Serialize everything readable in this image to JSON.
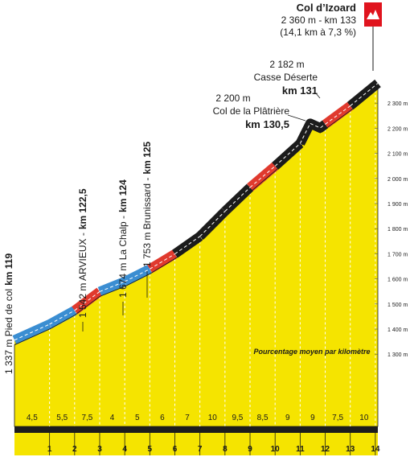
{
  "chart_data": {
    "type": "climb-profile",
    "title": "Col d’Izoard",
    "subtitle": "2 360 m - km 133",
    "summary": "(14,1 km à 7,3 %)",
    "legend_note": "Pourcentage moyen par kilomètre",
    "profile": {
      "x": [
        -0.4,
        1,
        2,
        3,
        4,
        5,
        6,
        7,
        8,
        9,
        10,
        11,
        11.4,
        11.8,
        13,
        14.1
      ],
      "elevation": [
        1337,
        1400,
        1455,
        1530,
        1570,
        1620,
        1680,
        1750,
        1850,
        1945,
        2030,
        2120,
        2200,
        2182,
        2270,
        2360
      ]
    },
    "bounds": [
      -0.4,
      1,
      2,
      3,
      4,
      5,
      6,
      7,
      8,
      9,
      10,
      11,
      12,
      13,
      14.1
    ],
    "values": [
      4.5,
      5.5,
      7.5,
      4,
      5,
      6,
      7,
      10,
      9.5,
      8.5,
      9,
      9,
      7.5,
      10
    ],
    "value_labels": [
      "4,5",
      "5,5",
      "7,5",
      "4",
      "5",
      "6",
      "7",
      "10",
      "9,5",
      "8,5",
      "9",
      "9",
      "7,5",
      "10"
    ],
    "colors": [
      "#3b8ed2",
      "#3b8ed2",
      "#e03a2e",
      "#3b8ed2",
      "#3b8ed2",
      "#e03a2e",
      "#1c1c1c",
      "#1c1c1c",
      "#1c1c1c",
      "#e03a2e",
      "#1c1c1c",
      "#1c1c1c",
      "#e03a2e",
      "#1c1c1c"
    ],
    "xlim": [
      -0.4,
      14.1
    ],
    "xticks": [
      1,
      2,
      3,
      4,
      5,
      6,
      7,
      8,
      9,
      10,
      11,
      12,
      13,
      14
    ],
    "ylim": [
      1150,
      2400
    ],
    "yticks": [
      {
        "value": 1300,
        "label": "1 300 m"
      },
      {
        "value": 1400,
        "label": "1 400 m"
      },
      {
        "value": 1500,
        "label": "1 500 m"
      },
      {
        "value": 1600,
        "label": "1 600 m"
      },
      {
        "value": 1700,
        "label": "1 700 m"
      },
      {
        "value": 1800,
        "label": "1 800 m"
      },
      {
        "value": 1900,
        "label": "1 900 m"
      },
      {
        "value": 2000,
        "label": "2 000 m"
      },
      {
        "value": 2100,
        "label": "2 100 m"
      },
      {
        "value": 2200,
        "label": "2 200 m"
      },
      {
        "value": 2300,
        "label": "2 300 m"
      }
    ],
    "vertical_annotations": [
      {
        "text": "1 337 m Pied de col",
        "bold": "km 119"
      },
      {
        "text": "1 542 m ARVIEUX -",
        "bold": "km 122,5"
      },
      {
        "text": "1 674 m La Chalp -",
        "bold": "km 124"
      },
      {
        "text": "1 753 m Brunissard -",
        "bold": "km 125"
      }
    ],
    "point_annotations": [
      {
        "elevation": "2 200 m",
        "name": "Col de la Plâtrière",
        "km": "km 130,5"
      },
      {
        "elevation": "2 182 m",
        "name": "Casse Déserte",
        "km": "km 131"
      }
    ]
  }
}
